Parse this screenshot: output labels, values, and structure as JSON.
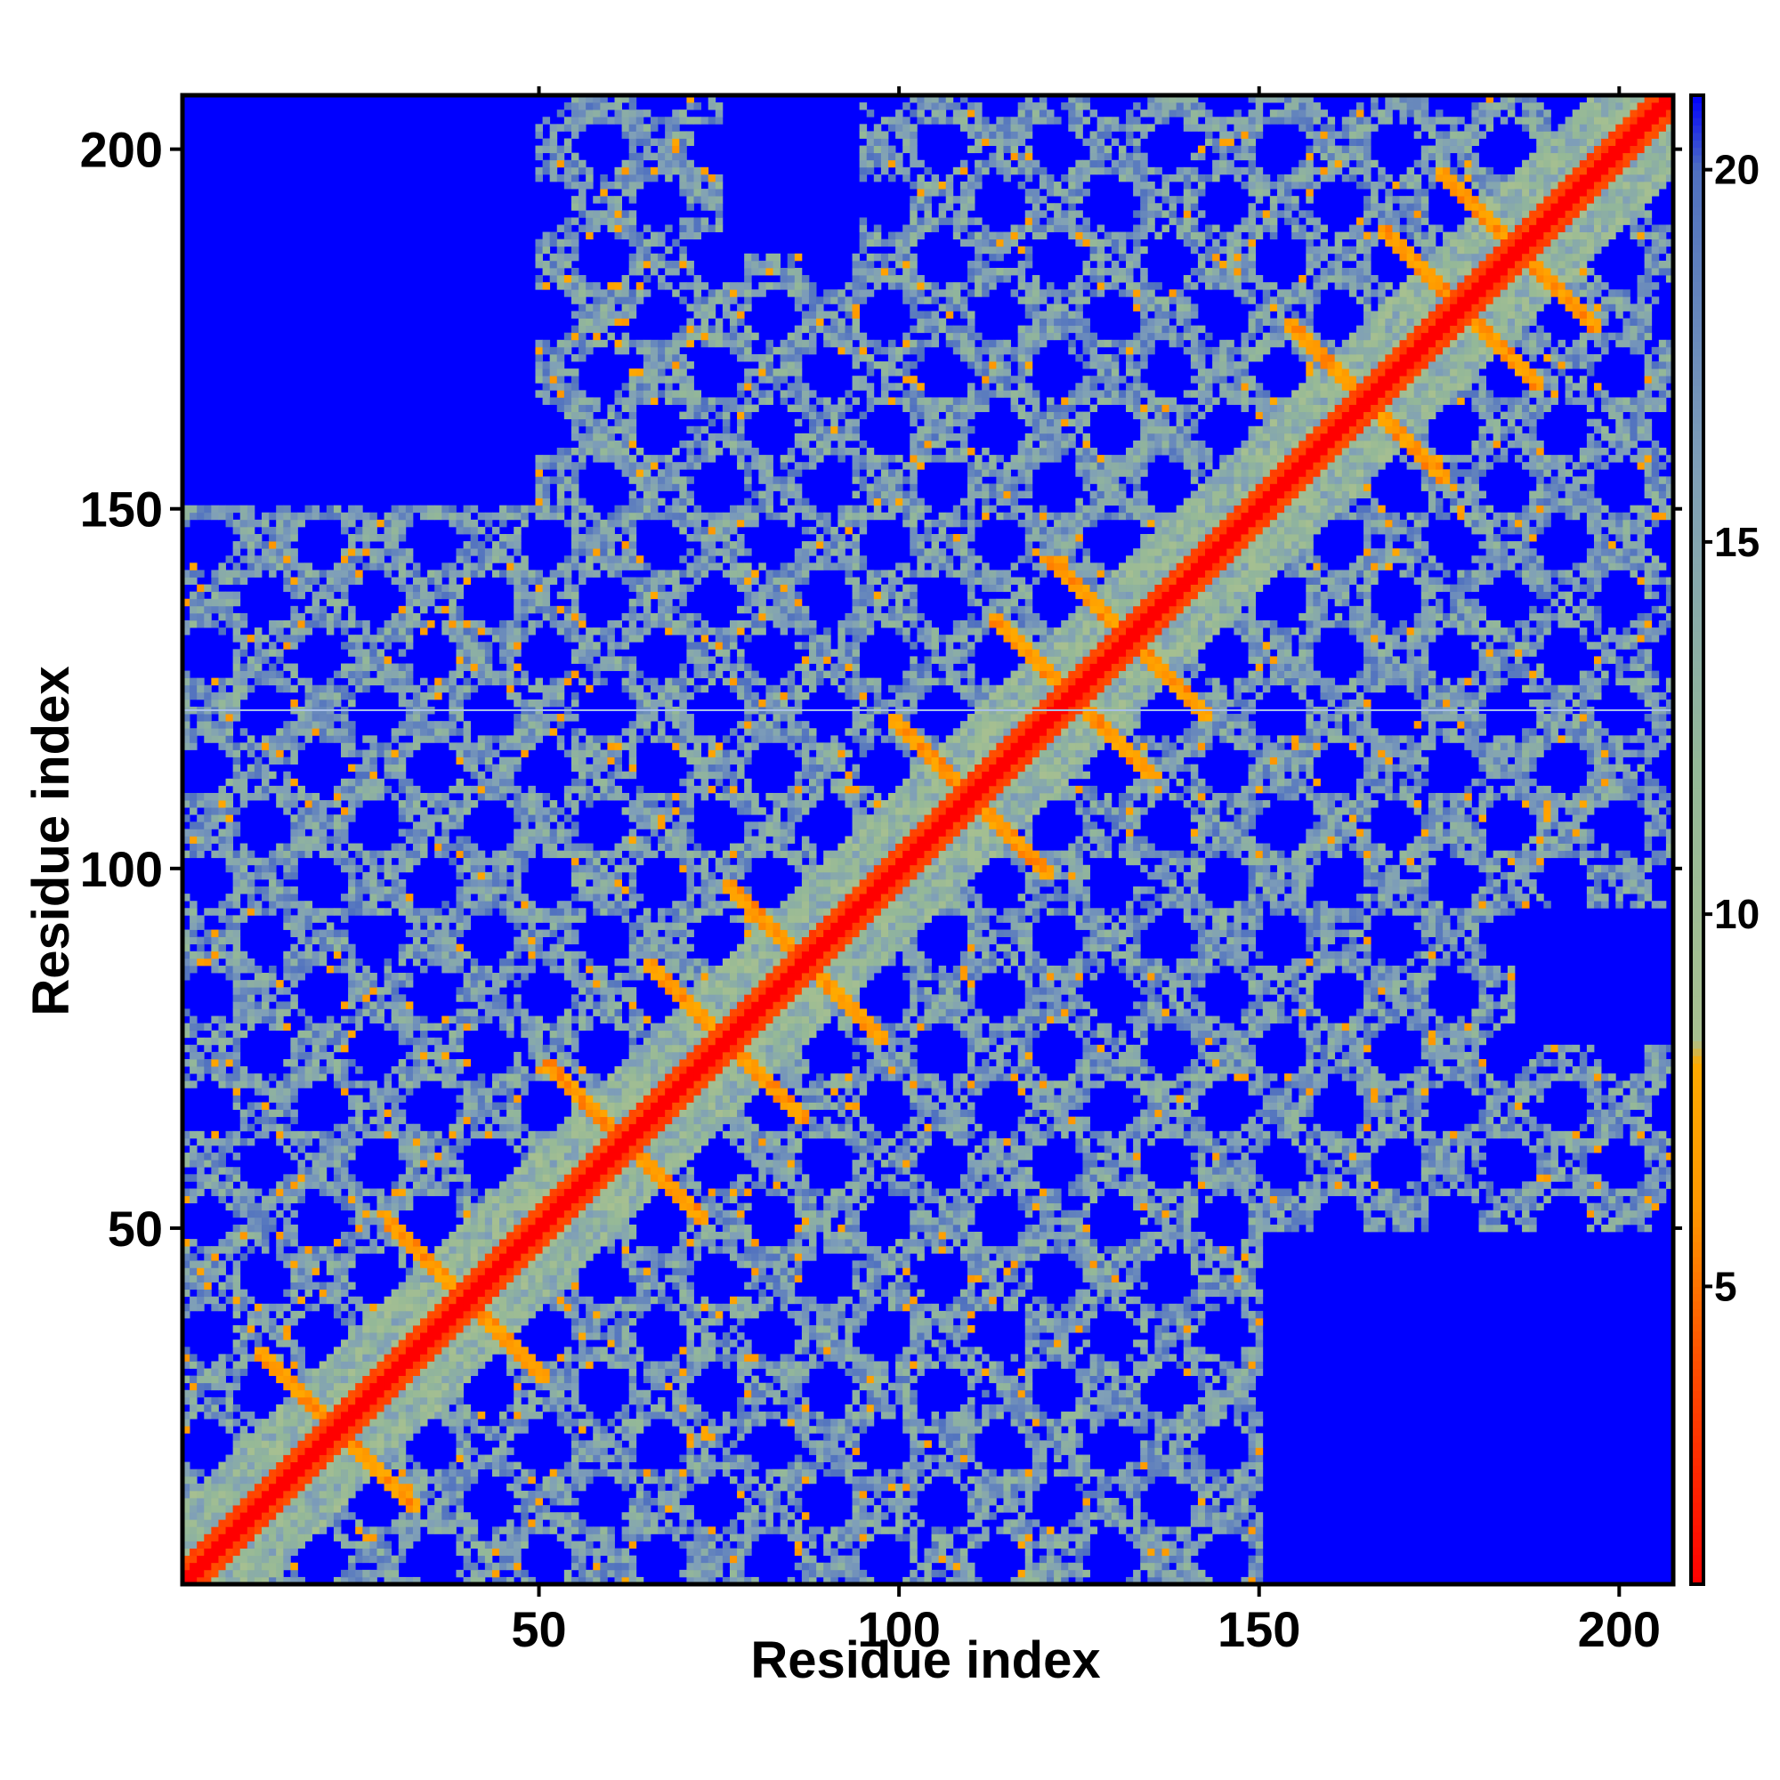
{
  "chart_data": {
    "type": "heatmap",
    "title": "",
    "xlabel": "Residue index",
    "ylabel": "Residue index",
    "n_residues": 207,
    "xlim": [
      1,
      207
    ],
    "ylim": [
      1,
      207
    ],
    "x_ticks": [
      50,
      100,
      150,
      200
    ],
    "x_tick_labels": [
      "50",
      "100",
      "150",
      "200"
    ],
    "y_ticks": [
      50,
      100,
      150,
      200
    ],
    "y_tick_labels": [
      "50",
      "100",
      "150",
      "200"
    ],
    "colorbar": {
      "range": [
        1,
        21
      ],
      "ticks": [
        5,
        10,
        15,
        20
      ],
      "tick_labels": [
        "5",
        "10",
        "15",
        "20"
      ],
      "colors": {
        "contact_near": "#ff0000",
        "contact_mid": "#ff4000",
        "contact_far": "#ffa500",
        "contact_edge": "#ff8c00",
        "mid_low": "#b4c88c",
        "mid": "#8cb4a0",
        "mid_high": "#6490c8",
        "background": "#0000ff"
      },
      "stops": [
        {
          "value": 1,
          "color": "#ff0000"
        },
        {
          "value": 4,
          "color": "#ff5000"
        },
        {
          "value": 6,
          "color": "#ff9600"
        },
        {
          "value": 8,
          "color": "#ffaa00"
        },
        {
          "value": 8.3,
          "color": "#a8c090"
        },
        {
          "value": 12,
          "color": "#94b898"
        },
        {
          "value": 16,
          "color": "#7f9fb8"
        },
        {
          "value": 20,
          "color": "#4f70c0"
        },
        {
          "value": 21,
          "color": "#0000ff"
        }
      ]
    },
    "features": {
      "diagonal_value": 1,
      "helix_crossings": [
        {
          "i": 22,
          "j": 22
        },
        {
          "i": 40,
          "j": 40
        },
        {
          "i": 62,
          "j": 62
        },
        {
          "i": 76,
          "j": 76
        },
        {
          "i": 87,
          "j": 87
        },
        {
          "i": 110,
          "j": 110
        },
        {
          "i": 124,
          "j": 124
        },
        {
          "i": 132,
          "j": 132
        },
        {
          "i": 165,
          "j": 165
        },
        {
          "i": 178,
          "j": 178
        },
        {
          "i": 186,
          "j": 186
        }
      ],
      "contact_block_ranges": [
        {
          "x": [
            1,
            150
          ],
          "y": [
            1,
            150
          ]
        },
        {
          "x": [
            95,
            207
          ],
          "y": [
            95,
            207
          ]
        },
        {
          "x": [
            1,
            60
          ],
          "y": [
            95,
            125
          ]
        },
        {
          "x": [
            50,
            95
          ],
          "y": [
            150,
            185
          ]
        },
        {
          "x": [
            150,
            207
          ],
          "y": [
            50,
            75
          ]
        },
        {
          "x": [
            95,
            125
          ],
          "y": [
            10,
            30
          ]
        },
        {
          "x": [
            150,
            207
          ],
          "y": [
            95,
            125
          ]
        }
      ],
      "highlight_row": 122
    }
  }
}
